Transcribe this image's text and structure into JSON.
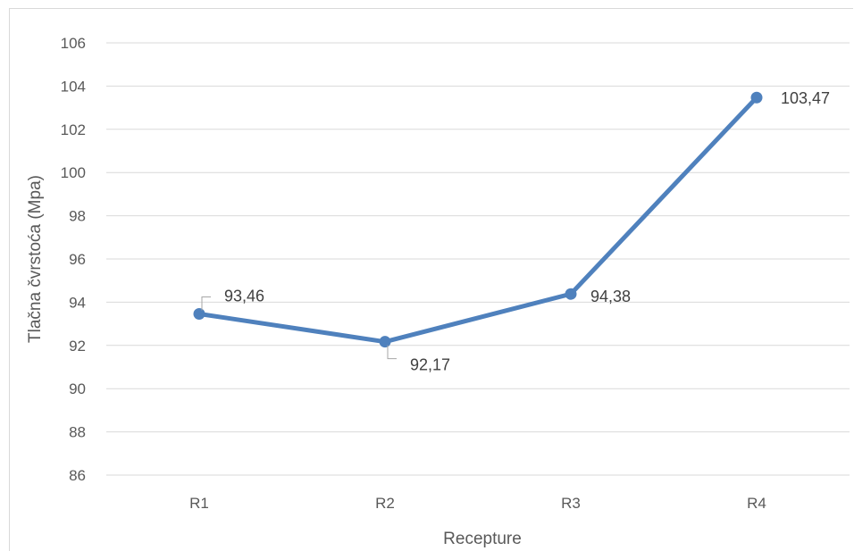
{
  "chart_data": {
    "type": "line",
    "title": "",
    "xlabel": "Recepture",
    "ylabel": "Tlačna čvrstoća (Mpa)",
    "categories": [
      "R1",
      "R2",
      "R3",
      "R4"
    ],
    "series": [
      {
        "values": [
          93.46,
          92.17,
          94.38,
          103.47
        ],
        "data_labels": [
          "93,46",
          "92,17",
          "94,38",
          "103,47"
        ],
        "color": "#4f81bd"
      }
    ],
    "ylim": [
      86,
      106
    ],
    "ytick_labels": [
      "86",
      "88",
      "90",
      "92",
      "94",
      "96",
      "98",
      "100",
      "102",
      "104",
      "106"
    ],
    "grid": true,
    "legend": "none"
  }
}
